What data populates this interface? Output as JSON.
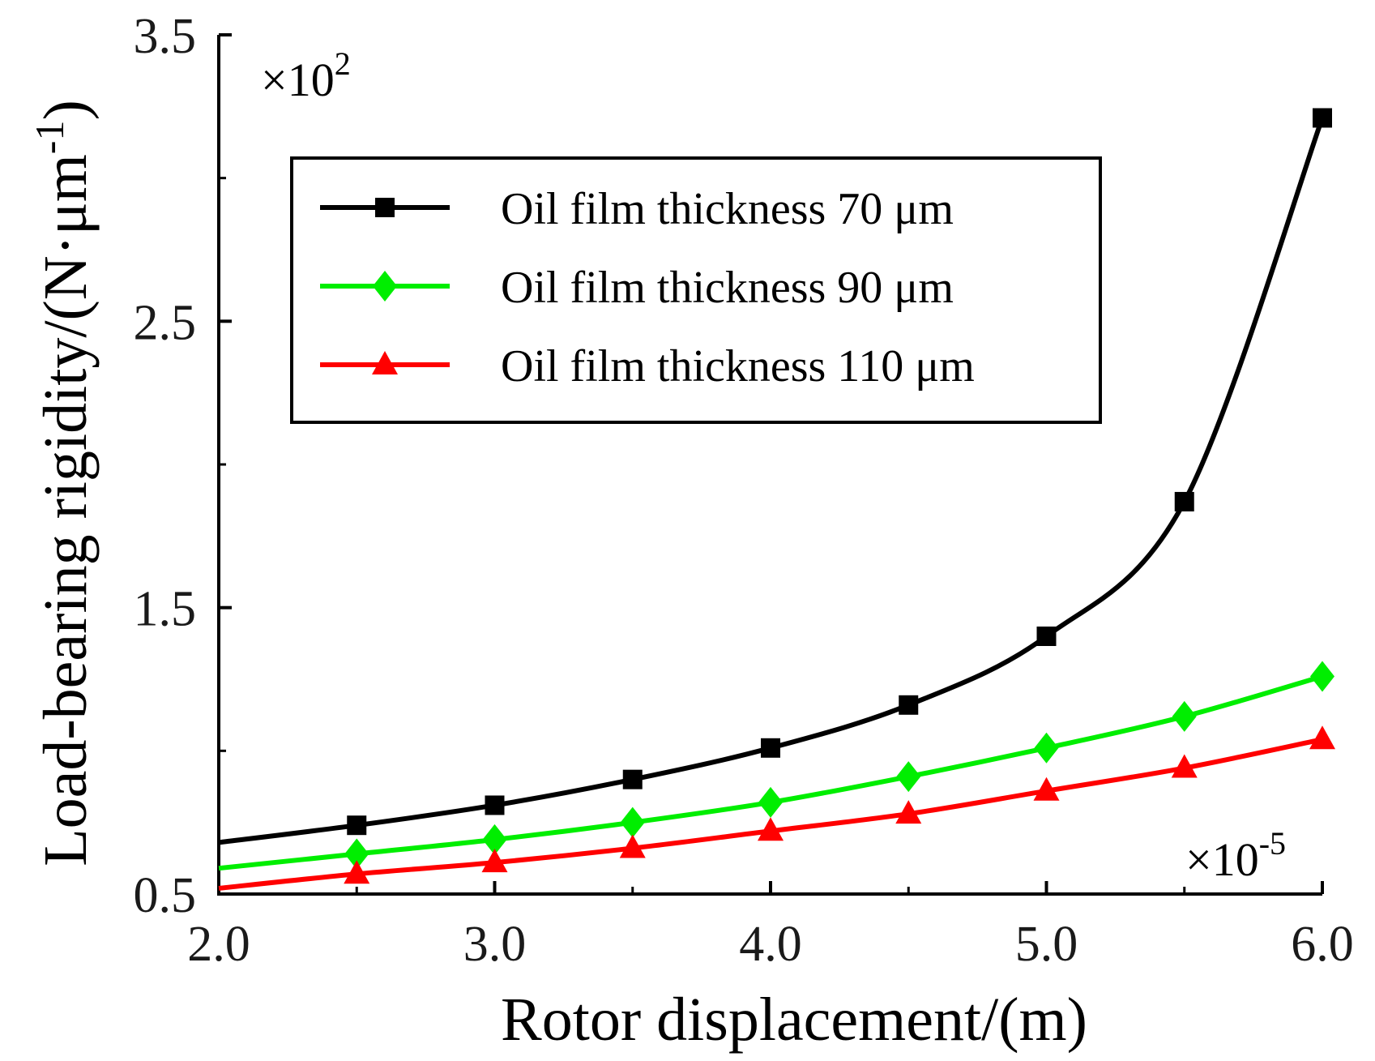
{
  "chart_data": {
    "type": "line",
    "title": "",
    "xlabel": "Rotor displacement/(m)",
    "ylabel_main": "Load-bearing rigidity/(N·μm",
    "ylabel_sup": "-1",
    "ylabel_close": ")",
    "x_multiplier_base": "×10",
    "x_multiplier_exp": "-5",
    "y_multiplier_base": "×10",
    "y_multiplier_exp": "2",
    "xlim": [
      2.0,
      6.0
    ],
    "ylim": [
      0.5,
      3.5
    ],
    "xticks": [
      2.0,
      3.0,
      4.0,
      5.0,
      6.0
    ],
    "xtick_labels": [
      "2.0",
      "3.0",
      "4.0",
      "5.0",
      "6.0"
    ],
    "xticks_minor": [
      2.5,
      3.5,
      4.5,
      5.5
    ],
    "yticks": [
      0.5,
      1.5,
      2.5,
      3.5
    ],
    "ytick_labels": [
      "0.5",
      "1.5",
      "2.5",
      "3.5"
    ],
    "ytick_minor": [
      1.0,
      2.0,
      3.0
    ],
    "legend_position": "top-center",
    "series": [
      {
        "name": "Oil film thickness 70 μm",
        "color": "#000000",
        "marker": "square",
        "x": [
          2.0,
          2.5,
          3.0,
          3.5,
          4.0,
          4.5,
          5.0,
          5.5,
          6.0
        ],
        "values": [
          0.68,
          0.74,
          0.81,
          0.9,
          1.01,
          1.16,
          1.4,
          1.87,
          3.21
        ],
        "marker_x": [
          2.5,
          3.0,
          3.5,
          4.0,
          4.5,
          5.0,
          5.5,
          6.0
        ]
      },
      {
        "name": "Oil film thickness 90 μm",
        "color": "#00ee00",
        "marker": "diamond",
        "x": [
          2.0,
          2.5,
          3.0,
          3.5,
          4.0,
          4.5,
          5.0,
          5.5,
          6.0
        ],
        "values": [
          0.59,
          0.64,
          0.69,
          0.75,
          0.82,
          0.91,
          1.01,
          1.12,
          1.26
        ],
        "marker_x": [
          2.5,
          3.0,
          3.5,
          4.0,
          4.5,
          5.0,
          5.5,
          6.0
        ]
      },
      {
        "name": "Oil film thickness 110 μm",
        "color": "#ff0000",
        "marker": "triangle",
        "x": [
          2.0,
          2.5,
          3.0,
          3.5,
          4.0,
          4.5,
          5.0,
          5.5,
          6.0
        ],
        "values": [
          0.52,
          0.57,
          0.61,
          0.66,
          0.72,
          0.78,
          0.86,
          0.94,
          1.04
        ],
        "marker_x": [
          2.5,
          3.0,
          3.5,
          4.0,
          4.5,
          5.0,
          5.5,
          6.0
        ]
      }
    ]
  }
}
